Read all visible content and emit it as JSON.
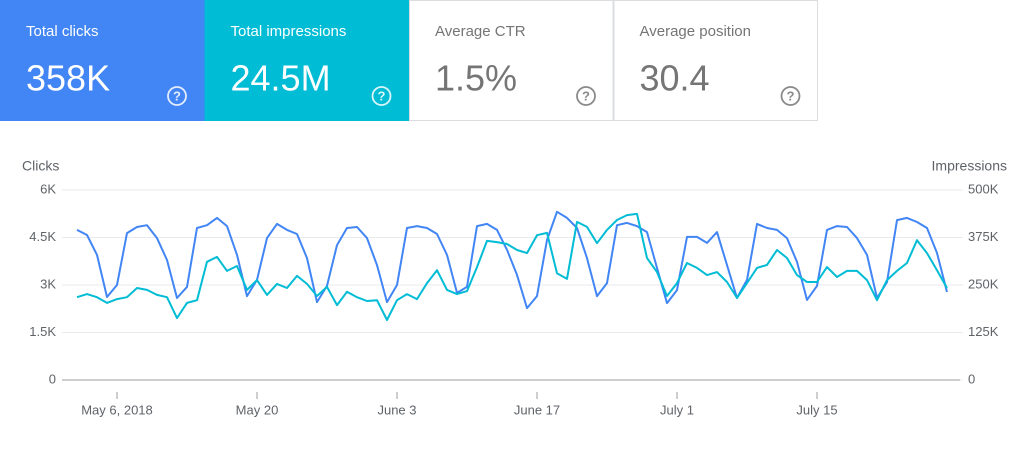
{
  "cards": [
    {
      "label": "Total clicks",
      "value": "358K",
      "bg": "#4285f4",
      "fg": "#ffffff"
    },
    {
      "label": "Total impressions",
      "value": "24.5M",
      "bg": "#00bcd4",
      "fg": "#ffffff"
    },
    {
      "label": "Average CTR",
      "value": "1.5%",
      "bg": "#ffffff",
      "fg": "#757575"
    },
    {
      "label": "Average position",
      "value": "30.4",
      "bg": "#ffffff",
      "fg": "#757575"
    }
  ],
  "help_icon": "?",
  "chart_data": {
    "type": "line",
    "y_label": "Clicks",
    "y2_label": "Impressions",
    "x": [
      "2018-05-02",
      "2018-05-03",
      "2018-05-04",
      "2018-05-05",
      "2018-05-06",
      "2018-05-07",
      "2018-05-08",
      "2018-05-09",
      "2018-05-10",
      "2018-05-11",
      "2018-05-12",
      "2018-05-13",
      "2018-05-14",
      "2018-05-15",
      "2018-05-16",
      "2018-05-17",
      "2018-05-18",
      "2018-05-19",
      "2018-05-20",
      "2018-05-21",
      "2018-05-22",
      "2018-05-23",
      "2018-05-24",
      "2018-05-25",
      "2018-05-26",
      "2018-05-27",
      "2018-05-28",
      "2018-05-29",
      "2018-05-30",
      "2018-05-31",
      "2018-06-01",
      "2018-06-02",
      "2018-06-03",
      "2018-06-04",
      "2018-06-05",
      "2018-06-06",
      "2018-06-07",
      "2018-06-08",
      "2018-06-09",
      "2018-06-10",
      "2018-06-11",
      "2018-06-12",
      "2018-06-13",
      "2018-06-14",
      "2018-06-15",
      "2018-06-16",
      "2018-06-17",
      "2018-06-18",
      "2018-06-19",
      "2018-06-20",
      "2018-06-21",
      "2018-06-22",
      "2018-06-23",
      "2018-06-24",
      "2018-06-25",
      "2018-06-26",
      "2018-06-27",
      "2018-06-28",
      "2018-06-29",
      "2018-06-30",
      "2018-07-01",
      "2018-07-02",
      "2018-07-03",
      "2018-07-04",
      "2018-07-05",
      "2018-07-06",
      "2018-07-07",
      "2018-07-08",
      "2018-07-09",
      "2018-07-10",
      "2018-07-11",
      "2018-07-12",
      "2018-07-13",
      "2018-07-14",
      "2018-07-15",
      "2018-07-16",
      "2018-07-17",
      "2018-07-18",
      "2018-07-19",
      "2018-07-20",
      "2018-07-21",
      "2018-07-22",
      "2018-07-23",
      "2018-07-24",
      "2018-07-25",
      "2018-07-26",
      "2018-07-27",
      "2018-07-28"
    ],
    "xticks": [
      {
        "value": "2018-05-06",
        "label": "May 6, 2018"
      },
      {
        "value": "2018-05-20",
        "label": "May 20"
      },
      {
        "value": "2018-06-03",
        "label": "June 3"
      },
      {
        "value": "2018-06-17",
        "label": "June 17"
      },
      {
        "value": "2018-07-01",
        "label": "July 1"
      },
      {
        "value": "2018-07-15",
        "label": "July 15"
      }
    ],
    "ylim": [
      0,
      6000
    ],
    "yticks": [
      0,
      {
        "value": 1500,
        "label": "1.5K"
      },
      {
        "value": 3000,
        "label": "3K"
      },
      {
        "value": 4500,
        "label": "4.5K"
      },
      {
        "value": 6000,
        "label": "6K"
      }
    ],
    "y2lim": [
      0,
      500000
    ],
    "y2ticks": [
      0,
      {
        "value": 125000,
        "label": "125K"
      },
      {
        "value": 250000,
        "label": "250K"
      },
      {
        "value": 375000,
        "label": "375K"
      },
      {
        "value": 500000,
        "label": "500K"
      }
    ],
    "grid": true,
    "series": [
      {
        "name": "Clicks",
        "color": "#4285f4",
        "axis": "y",
        "values": [
          4740,
          4580,
          3950,
          2620,
          3000,
          4640,
          4830,
          4890,
          4480,
          3790,
          2590,
          2940,
          4800,
          4890,
          5120,
          4860,
          3950,
          2650,
          3160,
          4480,
          4930,
          4740,
          4610,
          3850,
          2460,
          2970,
          4260,
          4800,
          4830,
          4480,
          3630,
          2460,
          3000,
          4800,
          4860,
          4800,
          4610,
          3950,
          2750,
          2940,
          4860,
          4930,
          4740,
          4110,
          3320,
          2270,
          2650,
          4420,
          5310,
          5120,
          4800,
          3850,
          2650,
          3060,
          4890,
          4960,
          4860,
          4670,
          3540,
          2430,
          2840,
          4520,
          4520,
          4330,
          4670,
          3630,
          2590,
          3160,
          4930,
          4800,
          4740,
          4480,
          3730,
          2530,
          2970,
          4740,
          4860,
          4830,
          4480,
          3950,
          2590,
          3090,
          5050,
          5120,
          4990,
          4800,
          4010,
          2780
        ]
      },
      {
        "name": "Impressions",
        "color": "#00bcd4",
        "axis": "y2",
        "values": [
          218000,
          226000,
          218000,
          203000,
          213000,
          218000,
          242000,
          237000,
          224000,
          218000,
          163000,
          203000,
          210000,
          311000,
          324000,
          287000,
          300000,
          237000,
          263000,
          224000,
          253000,
          242000,
          274000,
          253000,
          221000,
          245000,
          197000,
          232000,
          218000,
          208000,
          210000,
          158000,
          210000,
          226000,
          213000,
          255000,
          289000,
          237000,
          226000,
          234000,
          297000,
          366000,
          363000,
          358000,
          342000,
          334000,
          381000,
          387000,
          281000,
          266000,
          416000,
          403000,
          360000,
          395000,
          421000,
          434000,
          437000,
          321000,
          284000,
          221000,
          255000,
          308000,
          295000,
          276000,
          284000,
          258000,
          216000,
          255000,
          295000,
          303000,
          342000,
          321000,
          276000,
          258000,
          258000,
          297000,
          271000,
          287000,
          287000,
          263000,
          210000,
          263000,
          287000,
          308000,
          368000,
          334000,
          289000,
          242000
        ]
      }
    ]
  }
}
